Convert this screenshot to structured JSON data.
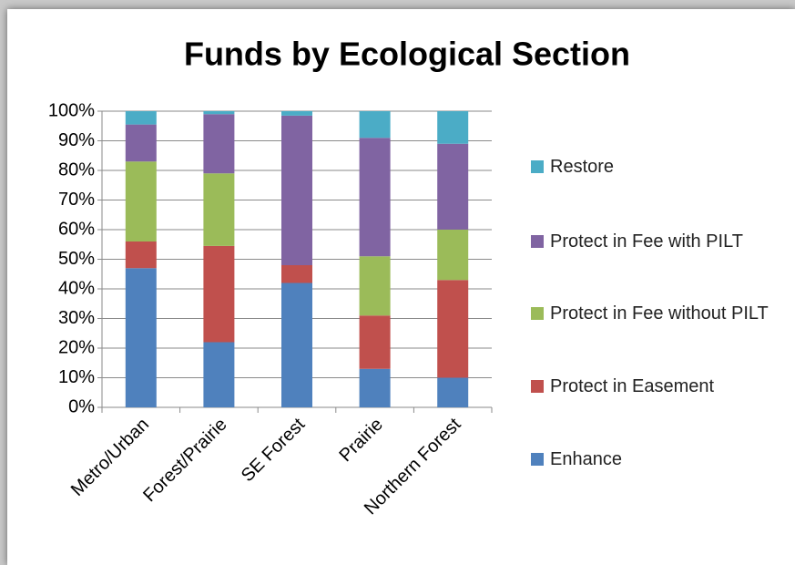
{
  "chart_data": {
    "type": "stacked_bar",
    "title": "Funds by Ecological Section",
    "categories": [
      "Metro/Urban",
      "Forest/Prairie",
      "SE Forest",
      "Prairie",
      "Northern Forest"
    ],
    "series": [
      {
        "name": "Enhance",
        "color": "#4f81bd",
        "values": [
          47,
          22,
          42,
          13,
          10
        ]
      },
      {
        "name": "Protect in Easement",
        "color": "#c0504d",
        "values": [
          9,
          32.5,
          6,
          18,
          33
        ]
      },
      {
        "name": "Protect in Fee without PILT",
        "color": "#9bbb59",
        "values": [
          27,
          24.5,
          0,
          20,
          17
        ]
      },
      {
        "name": "Protect in Fee with PILT",
        "color": "#8064a2",
        "values": [
          12.5,
          20,
          50.5,
          40,
          29
        ]
      },
      {
        "name": "Restore",
        "color": "#4bacc6",
        "values": [
          4.5,
          1,
          1.5,
          9,
          11
        ]
      }
    ],
    "ylim": [
      0,
      100
    ],
    "yticks": [
      {
        "value": 0,
        "label": "0%"
      },
      {
        "value": 10,
        "label": "10%"
      },
      {
        "value": 20,
        "label": "20%"
      },
      {
        "value": 30,
        "label": "30%"
      },
      {
        "value": 40,
        "label": "40%"
      },
      {
        "value": 50,
        "label": "50%"
      },
      {
        "value": 60,
        "label": "60%"
      },
      {
        "value": 70,
        "label": "70%"
      },
      {
        "value": 80,
        "label": "80%"
      },
      {
        "value": 90,
        "label": "90%"
      },
      {
        "value": 100,
        "label": "100%"
      }
    ],
    "grid": true,
    "legend": "right"
  }
}
